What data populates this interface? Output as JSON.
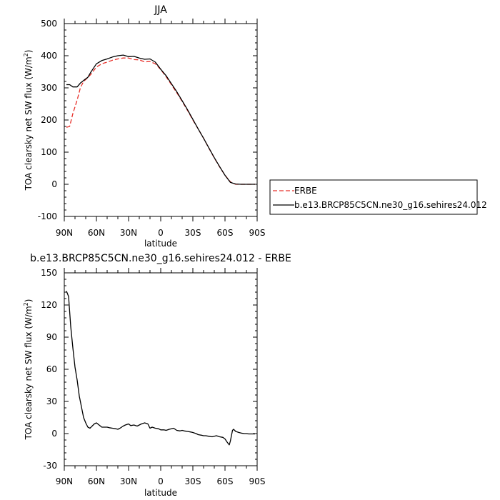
{
  "chart_data": [
    {
      "type": "line",
      "title": "JJA",
      "xlabel": "latitude",
      "ylabel_main": "TOA clearsky net SW flux (W/m",
      "ylabel_sup": "2",
      "ylabel_close": ")",
      "ylim": [
        -100,
        500
      ],
      "yticks": [
        -100,
        0,
        100,
        200,
        300,
        400,
        500
      ],
      "xlim": [
        90,
        -90
      ],
      "xticks": [
        90,
        60,
        30,
        0,
        -30,
        -60,
        -90
      ],
      "xtick_labels": [
        "90N",
        "60N",
        "30N",
        "0",
        "30S",
        "60S",
        "90S"
      ],
      "legend": {
        "placement": "outside-right"
      },
      "series": [
        {
          "name": "ERBE",
          "color": "#e8302a",
          "dash": "dashed",
          "x": [
            88,
            85,
            82,
            78,
            75,
            72,
            68,
            65,
            60,
            55,
            50,
            45,
            40,
            35,
            30,
            25,
            20,
            15,
            10,
            5,
            0,
            -5,
            -10,
            -15,
            -20,
            -25,
            -30,
            -35,
            -40,
            -45,
            -50,
            -55,
            -60,
            -65,
            -67,
            -70,
            -75,
            -80,
            -85,
            -88
          ],
          "y": [
            177,
            180,
            220,
            262,
            300,
            320,
            332,
            343,
            365,
            375,
            380,
            386,
            390,
            393,
            393,
            388,
            387,
            381,
            382,
            375,
            357,
            335,
            310,
            285,
            258,
            230,
            200,
            172,
            143,
            112,
            82,
            54,
            28,
            8,
            3,
            0,
            0,
            0,
            0,
            0
          ]
        },
        {
          "name": "b.e13.BRCP85C5CN.ne30_g16.sehires24.012",
          "color": "#000000",
          "dash": "solid",
          "x": [
            88,
            85,
            82,
            78,
            75,
            72,
            68,
            65,
            60,
            55,
            50,
            45,
            40,
            35,
            30,
            25,
            20,
            15,
            10,
            5,
            0,
            -5,
            -10,
            -15,
            -20,
            -25,
            -30,
            -35,
            -40,
            -45,
            -50,
            -55,
            -60,
            -65,
            -67,
            -70,
            -75,
            -80,
            -85,
            -88
          ],
          "y": [
            310,
            310,
            303,
            303,
            315,
            323,
            333,
            350,
            375,
            385,
            390,
            396,
            400,
            402,
            397,
            398,
            393,
            389,
            390,
            380,
            358,
            338,
            313,
            288,
            260,
            232,
            202,
            172,
            143,
            113,
            83,
            55,
            28,
            6,
            4,
            1,
            0,
            0,
            0,
            0
          ]
        }
      ]
    },
    {
      "type": "line",
      "title": "b.e13.BRCP85C5CN.ne30_g16.sehires24.012 - ERBE",
      "xlabel": "latitude",
      "ylabel_main": "TOA clearsky net SW flux (W/m",
      "ylabel_sup": "2",
      "ylabel_close": ")",
      "ylim": [
        -30,
        150
      ],
      "yticks": [
        -30,
        0,
        30,
        60,
        90,
        120,
        150
      ],
      "xlim": [
        90,
        -90
      ],
      "xticks": [
        90,
        60,
        30,
        0,
        -30,
        -60,
        -90
      ],
      "xtick_labels": [
        "90N",
        "60N",
        "30N",
        "0",
        "30S",
        "60S",
        "90S"
      ],
      "series": [
        {
          "color": "#000000",
          "dash": "solid",
          "x": [
            88,
            86,
            84,
            82,
            80,
            78,
            76,
            74,
            72,
            70,
            68,
            66,
            64,
            62,
            60,
            55,
            50,
            48,
            45,
            42,
            40,
            38,
            35,
            33,
            30,
            28,
            25,
            22,
            20,
            18,
            15,
            12,
            10,
            8,
            5,
            2,
            0,
            -3,
            -5,
            -8,
            -10,
            -12,
            -15,
            -18,
            -20,
            -22,
            -25,
            -28,
            -30,
            -33,
            -35,
            -38,
            -40,
            -42,
            -45,
            -48,
            -50,
            -52,
            -55,
            -58,
            -60,
            -62,
            -64,
            -65,
            -66,
            -67,
            -68,
            -70,
            -73,
            -75,
            -78,
            -80,
            -82,
            -85,
            -88
          ],
          "y": [
            133,
            128,
            100,
            80,
            62,
            50,
            35,
            25,
            15,
            10,
            6,
            5,
            7,
            9,
            10,
            6,
            6,
            5.5,
            5,
            4.5,
            4,
            5,
            7,
            8,
            9,
            7.5,
            8,
            7,
            8,
            9,
            10,
            9,
            5,
            6,
            5,
            4.5,
            3.5,
            3.5,
            3,
            4,
            4.5,
            5,
            3,
            2.5,
            3,
            2.5,
            2,
            1.5,
            1,
            0,
            -1,
            -1.5,
            -2,
            -2,
            -2.5,
            -3,
            -2.5,
            -2,
            -3,
            -3.5,
            -5,
            -8,
            -10.5,
            -7,
            -2,
            3,
            4,
            2,
            1,
            0.5,
            0,
            0,
            -0.3,
            -0.3,
            -0.3
          ]
        }
      ]
    }
  ]
}
